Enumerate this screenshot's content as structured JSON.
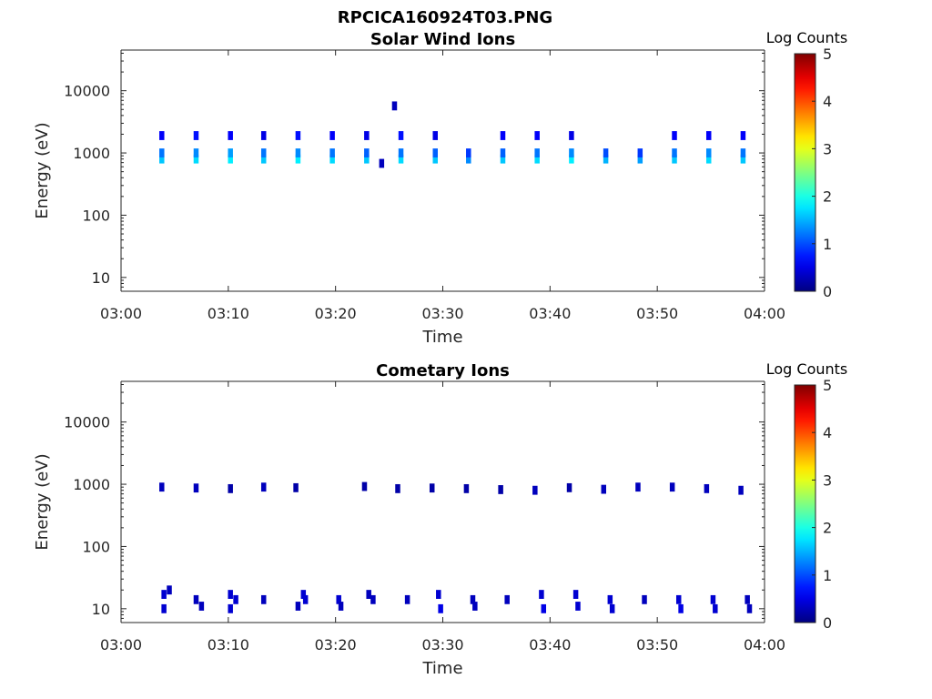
{
  "figure": {
    "title": "RPCICA160924T03.PNG"
  },
  "chart_data": [
    {
      "type": "heatmap",
      "title": "Solar Wind Ions",
      "xlabel": "Time",
      "ylabel": "Energy (eV)",
      "x_ticks": [
        "03:00",
        "03:10",
        "03:20",
        "03:30",
        "03:40",
        "03:50",
        "04:00"
      ],
      "xlim_minutes": [
        0,
        60
      ],
      "y_scale": "log",
      "ylim": [
        6,
        45000
      ],
      "y_ticks": [
        10,
        100,
        1000,
        10000
      ],
      "y_tick_labels": [
        "10",
        "100",
        "1000",
        "10000"
      ],
      "colorbar": {
        "label": "Log Counts",
        "min": 0,
        "max": 5,
        "ticks": [
          "0",
          "1",
          "2",
          "3",
          "4",
          "5"
        ],
        "colormap": "jet"
      },
      "grid": false,
      "sweep_times_minutes": [
        3.8,
        7.0,
        10.2,
        13.3,
        16.5,
        19.7,
        22.9,
        26.1,
        29.3,
        32.4,
        35.6,
        38.8,
        42.0,
        45.2,
        48.4,
        51.6,
        54.8,
        58.0
      ],
      "cells": [
        {
          "t": 3.8,
          "e": 800,
          "z": 1.6
        },
        {
          "t": 3.8,
          "e": 1000,
          "z": 1.2
        },
        {
          "t": 3.8,
          "e": 1900,
          "z": 0.6
        },
        {
          "t": 7.0,
          "e": 800,
          "z": 1.7
        },
        {
          "t": 7.0,
          "e": 1000,
          "z": 1.3
        },
        {
          "t": 7.0,
          "e": 1900,
          "z": 0.7
        },
        {
          "t": 10.2,
          "e": 800,
          "z": 1.8
        },
        {
          "t": 10.2,
          "e": 1000,
          "z": 1.4
        },
        {
          "t": 10.2,
          "e": 1900,
          "z": 0.6
        },
        {
          "t": 13.3,
          "e": 800,
          "z": 1.6
        },
        {
          "t": 13.3,
          "e": 1000,
          "z": 1.2
        },
        {
          "t": 13.3,
          "e": 1900,
          "z": 0.5
        },
        {
          "t": 16.5,
          "e": 800,
          "z": 1.8
        },
        {
          "t": 16.5,
          "e": 1000,
          "z": 1.3
        },
        {
          "t": 16.5,
          "e": 1900,
          "z": 0.7
        },
        {
          "t": 19.7,
          "e": 800,
          "z": 1.7
        },
        {
          "t": 19.7,
          "e": 1000,
          "z": 1.2
        },
        {
          "t": 19.7,
          "e": 1900,
          "z": 0.6
        },
        {
          "t": 22.9,
          "e": 800,
          "z": 1.6
        },
        {
          "t": 22.9,
          "e": 1000,
          "z": 1.1
        },
        {
          "t": 22.9,
          "e": 1900,
          "z": 0.5
        },
        {
          "t": 26.1,
          "e": 800,
          "z": 1.7
        },
        {
          "t": 26.1,
          "e": 1000,
          "z": 1.2
        },
        {
          "t": 26.1,
          "e": 1900,
          "z": 0.7
        },
        {
          "t": 29.3,
          "e": 800,
          "z": 1.6
        },
        {
          "t": 29.3,
          "e": 1000,
          "z": 1.1
        },
        {
          "t": 29.3,
          "e": 1900,
          "z": 0.5
        },
        {
          "t": 32.4,
          "e": 800,
          "z": 1.3
        },
        {
          "t": 32.4,
          "e": 1000,
          "z": 0.9
        },
        {
          "t": 35.6,
          "e": 800,
          "z": 1.6
        },
        {
          "t": 35.6,
          "e": 1000,
          "z": 1.1
        },
        {
          "t": 35.6,
          "e": 1900,
          "z": 0.6
        },
        {
          "t": 38.8,
          "e": 800,
          "z": 1.7
        },
        {
          "t": 38.8,
          "e": 1000,
          "z": 1.2
        },
        {
          "t": 38.8,
          "e": 1900,
          "z": 0.6
        },
        {
          "t": 42.0,
          "e": 800,
          "z": 1.8
        },
        {
          "t": 42.0,
          "e": 1000,
          "z": 1.3
        },
        {
          "t": 42.0,
          "e": 1900,
          "z": 0.5
        },
        {
          "t": 45.2,
          "e": 800,
          "z": 1.5
        },
        {
          "t": 45.2,
          "e": 1000,
          "z": 1.0
        },
        {
          "t": 48.4,
          "e": 800,
          "z": 1.4
        },
        {
          "t": 48.4,
          "e": 1000,
          "z": 0.9
        },
        {
          "t": 51.6,
          "e": 800,
          "z": 1.6
        },
        {
          "t": 51.6,
          "e": 1000,
          "z": 1.2
        },
        {
          "t": 51.6,
          "e": 1900,
          "z": 0.6
        },
        {
          "t": 54.8,
          "e": 800,
          "z": 1.7
        },
        {
          "t": 54.8,
          "e": 1000,
          "z": 1.3
        },
        {
          "t": 54.8,
          "e": 1900,
          "z": 0.6
        },
        {
          "t": 58.0,
          "e": 800,
          "z": 1.6
        },
        {
          "t": 58.0,
          "e": 1000,
          "z": 1.2
        },
        {
          "t": 58.0,
          "e": 1900,
          "z": 0.6
        },
        {
          "t": 25.5,
          "e": 5700,
          "z": 0.3
        },
        {
          "t": 24.3,
          "e": 680,
          "z": 0.3
        }
      ]
    },
    {
      "type": "heatmap",
      "title": "Cometary Ions",
      "xlabel": "Time",
      "ylabel": "Energy (eV)",
      "x_ticks": [
        "03:00",
        "03:10",
        "03:20",
        "03:30",
        "03:40",
        "03:50",
        "04:00"
      ],
      "xlim_minutes": [
        0,
        60
      ],
      "y_scale": "log",
      "ylim": [
        6,
        45000
      ],
      "y_ticks": [
        10,
        100,
        1000,
        10000
      ],
      "y_tick_labels": [
        "10",
        "100",
        "1000",
        "10000"
      ],
      "colorbar": {
        "label": "Log Counts",
        "min": 0,
        "max": 5,
        "ticks": [
          "0",
          "1",
          "2",
          "3",
          "4",
          "5"
        ],
        "colormap": "jet"
      },
      "grid": false,
      "cells": [
        {
          "t": 3.8,
          "e": 900,
          "z": 0.3
        },
        {
          "t": 7.0,
          "e": 870,
          "z": 0.3
        },
        {
          "t": 10.2,
          "e": 850,
          "z": 0.2
        },
        {
          "t": 13.3,
          "e": 900,
          "z": 0.3
        },
        {
          "t": 16.3,
          "e": 880,
          "z": 0.2
        },
        {
          "t": 22.7,
          "e": 920,
          "z": 0.2
        },
        {
          "t": 25.8,
          "e": 850,
          "z": 0.2
        },
        {
          "t": 29.0,
          "e": 870,
          "z": 0.2
        },
        {
          "t": 32.2,
          "e": 850,
          "z": 0.2
        },
        {
          "t": 35.4,
          "e": 820,
          "z": 0.2
        },
        {
          "t": 38.6,
          "e": 800,
          "z": 0.3
        },
        {
          "t": 41.8,
          "e": 880,
          "z": 0.2
        },
        {
          "t": 45.0,
          "e": 830,
          "z": 0.3
        },
        {
          "t": 48.2,
          "e": 900,
          "z": 0.3
        },
        {
          "t": 51.4,
          "e": 900,
          "z": 0.3
        },
        {
          "t": 54.6,
          "e": 850,
          "z": 0.3
        },
        {
          "t": 57.8,
          "e": 800,
          "z": 0.3
        },
        {
          "t": 4.0,
          "e": 17,
          "z": 0.4
        },
        {
          "t": 4.0,
          "e": 10,
          "z": 0.4
        },
        {
          "t": 4.5,
          "e": 20,
          "z": 0.3
        },
        {
          "t": 7.0,
          "e": 14,
          "z": 0.3
        },
        {
          "t": 7.5,
          "e": 11,
          "z": 0.3
        },
        {
          "t": 10.2,
          "e": 17,
          "z": 0.4
        },
        {
          "t": 10.2,
          "e": 10,
          "z": 0.4
        },
        {
          "t": 10.7,
          "e": 14,
          "z": 0.4
        },
        {
          "t": 13.3,
          "e": 14,
          "z": 0.3
        },
        {
          "t": 16.5,
          "e": 11,
          "z": 0.3
        },
        {
          "t": 17.0,
          "e": 17,
          "z": 0.4
        },
        {
          "t": 17.2,
          "e": 14,
          "z": 0.4
        },
        {
          "t": 20.3,
          "e": 14,
          "z": 0.4
        },
        {
          "t": 20.5,
          "e": 11,
          "z": 0.3
        },
        {
          "t": 23.1,
          "e": 17,
          "z": 0.3
        },
        {
          "t": 23.5,
          "e": 14,
          "z": 0.3
        },
        {
          "t": 26.7,
          "e": 14,
          "z": 0.3
        },
        {
          "t": 29.6,
          "e": 17,
          "z": 0.4
        },
        {
          "t": 29.8,
          "e": 10,
          "z": 0.5
        },
        {
          "t": 32.8,
          "e": 14,
          "z": 0.3
        },
        {
          "t": 33.0,
          "e": 11,
          "z": 0.3
        },
        {
          "t": 36.0,
          "e": 14,
          "z": 0.3
        },
        {
          "t": 39.2,
          "e": 17,
          "z": 0.4
        },
        {
          "t": 39.4,
          "e": 10,
          "z": 0.5
        },
        {
          "t": 42.4,
          "e": 17,
          "z": 0.4
        },
        {
          "t": 42.6,
          "e": 11,
          "z": 0.4
        },
        {
          "t": 45.6,
          "e": 14,
          "z": 0.4
        },
        {
          "t": 45.8,
          "e": 10,
          "z": 0.4
        },
        {
          "t": 48.8,
          "e": 14,
          "z": 0.3
        },
        {
          "t": 52.0,
          "e": 14,
          "z": 0.4
        },
        {
          "t": 52.2,
          "e": 10,
          "z": 0.5
        },
        {
          "t": 55.2,
          "e": 14,
          "z": 0.4
        },
        {
          "t": 55.4,
          "e": 10,
          "z": 0.4
        },
        {
          "t": 58.4,
          "e": 14,
          "z": 0.3
        },
        {
          "t": 58.6,
          "e": 10,
          "z": 0.3
        }
      ]
    }
  ]
}
